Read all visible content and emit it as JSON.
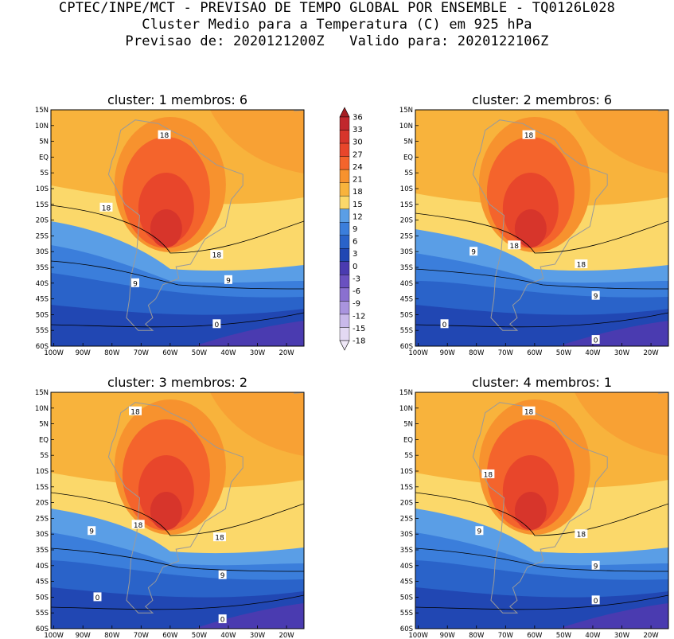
{
  "header": {
    "line1": "CPTEC/INPE/MCT - PREVISAO DE TEMPO GLOBAL POR ENSEMBLE - TQ0126L028",
    "line2": "Cluster Medio para a Temperatura (C) em 925 hPa",
    "line3": "Previsao de: 2020121200Z   Valido para: 2020122106Z"
  },
  "lat_labels": [
    "15N",
    "10N",
    "5N",
    "EQ",
    "5S",
    "10S",
    "15S",
    "20S",
    "25S",
    "30S",
    "35S",
    "40S",
    "45S",
    "50S",
    "55S",
    "60S"
  ],
  "lon_labels": [
    "100W",
    "90W",
    "80W",
    "70W",
    "60W",
    "50W",
    "40W",
    "30W",
    "20W"
  ],
  "colorbar": {
    "labels": [
      "36",
      "33",
      "30",
      "27",
      "24",
      "21",
      "18",
      "15",
      "12",
      "9",
      "6",
      "3",
      "0",
      "-3",
      "-6",
      "-9",
      "-12",
      "-15",
      "-18"
    ],
    "colors": [
      "#c1272d",
      "#d7352b",
      "#e8462b",
      "#f4642c",
      "#f7922e",
      "#f8b33c",
      "#fbd86a",
      "#5a9ee6",
      "#3b7edb",
      "#2a63c9",
      "#2147b3",
      "#4a3bb0",
      "#6a51c0",
      "#8a70d0",
      "#a994de",
      "#c9b9ea",
      "#e3d9f3"
    ],
    "top_color": "#a51e23",
    "bottom_color": "#efe8f8"
  },
  "panels": [
    {
      "title": "cluster: 1   membros: 6",
      "labels": [
        {
          "text": "18",
          "lon": -62,
          "lat": 7
        },
        {
          "text": "18",
          "lon": -82,
          "lat": -16
        },
        {
          "text": "18",
          "lon": -44,
          "lat": -31
        },
        {
          "text": "9",
          "lon": -72,
          "lat": -40
        },
        {
          "text": "9",
          "lon": -40,
          "lat": -39
        },
        {
          "text": "0",
          "lon": -44,
          "lat": -53
        }
      ]
    },
    {
      "title": "cluster: 2   membros: 6",
      "labels": [
        {
          "text": "18",
          "lon": -62,
          "lat": 7
        },
        {
          "text": "18",
          "lon": -67,
          "lat": -28
        },
        {
          "text": "18",
          "lon": -44,
          "lat": -34
        },
        {
          "text": "9",
          "lon": -81,
          "lat": -30
        },
        {
          "text": "9",
          "lon": -39,
          "lat": -44
        },
        {
          "text": "0",
          "lon": -91,
          "lat": -53
        },
        {
          "text": "0",
          "lon": -39,
          "lat": -58
        }
      ]
    },
    {
      "title": "cluster: 3   membros: 2",
      "labels": [
        {
          "text": "18",
          "lon": -72,
          "lat": 9
        },
        {
          "text": "18",
          "lon": -71,
          "lat": -27
        },
        {
          "text": "18",
          "lon": -43,
          "lat": -31
        },
        {
          "text": "9",
          "lon": -87,
          "lat": -29
        },
        {
          "text": "9",
          "lon": -42,
          "lat": -43
        },
        {
          "text": "0",
          "lon": -85,
          "lat": -50
        },
        {
          "text": "0",
          "lon": -42,
          "lat": -57
        }
      ]
    },
    {
      "title": "cluster: 4   membros: 1",
      "labels": [
        {
          "text": "18",
          "lon": -62,
          "lat": 9
        },
        {
          "text": "18",
          "lon": -76,
          "lat": -11
        },
        {
          "text": "18",
          "lon": -44,
          "lat": -30
        },
        {
          "text": "9",
          "lon": -79,
          "lat": -29
        },
        {
          "text": "9",
          "lon": -39,
          "lat": -40
        },
        {
          "text": "0",
          "lon": -39,
          "lat": -51
        }
      ]
    }
  ]
}
